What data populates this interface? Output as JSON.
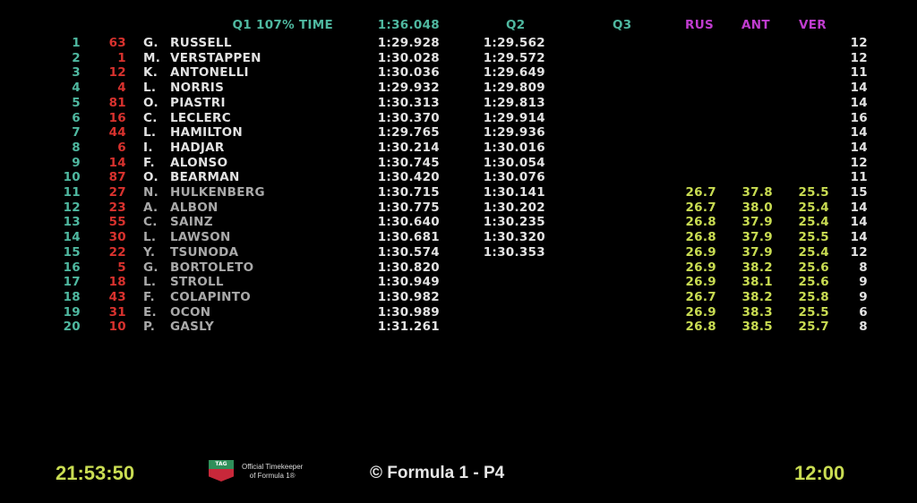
{
  "header": {
    "q1_label": "Q1 107% TIME",
    "q1_107_time": "1:36.048",
    "q2_label": "Q2",
    "q3_label": "Q3",
    "sectors": [
      "RUS",
      "ANT",
      "VER"
    ]
  },
  "rows": [
    {
      "pos": "1",
      "num": "63",
      "initial": "G.",
      "name": "RUSSELL",
      "q1": "1:29.928",
      "q2": "1:29.562",
      "s1": "",
      "s2": "",
      "s3": "",
      "laps": "12"
    },
    {
      "pos": "2",
      "num": "1",
      "initial": "M.",
      "name": "VERSTAPPEN",
      "q1": "1:30.028",
      "q2": "1:29.572",
      "s1": "",
      "s2": "",
      "s3": "",
      "laps": "12"
    },
    {
      "pos": "3",
      "num": "12",
      "initial": "K.",
      "name": "ANTONELLI",
      "q1": "1:30.036",
      "q2": "1:29.649",
      "s1": "",
      "s2": "",
      "s3": "",
      "laps": "11"
    },
    {
      "pos": "4",
      "num": "4",
      "initial": "L.",
      "name": "NORRIS",
      "q1": "1:29.932",
      "q2": "1:29.809",
      "s1": "",
      "s2": "",
      "s3": "",
      "laps": "14"
    },
    {
      "pos": "5",
      "num": "81",
      "initial": "O.",
      "name": "PIASTRI",
      "q1": "1:30.313",
      "q2": "1:29.813",
      "s1": "",
      "s2": "",
      "s3": "",
      "laps": "14"
    },
    {
      "pos": "6",
      "num": "16",
      "initial": "C.",
      "name": "LECLERC",
      "q1": "1:30.370",
      "q2": "1:29.914",
      "s1": "",
      "s2": "",
      "s3": "",
      "laps": "16"
    },
    {
      "pos": "7",
      "num": "44",
      "initial": "L.",
      "name": "HAMILTON",
      "q1": "1:29.765",
      "q2": "1:29.936",
      "s1": "",
      "s2": "",
      "s3": "",
      "laps": "14"
    },
    {
      "pos": "8",
      "num": "6",
      "initial": "I.",
      "name": "HADJAR",
      "q1": "1:30.214",
      "q2": "1:30.016",
      "s1": "",
      "s2": "",
      "s3": "",
      "laps": "14"
    },
    {
      "pos": "9",
      "num": "14",
      "initial": "F.",
      "name": "ALONSO",
      "q1": "1:30.745",
      "q2": "1:30.054",
      "s1": "",
      "s2": "",
      "s3": "",
      "laps": "12"
    },
    {
      "pos": "10",
      "num": "87",
      "initial": "O.",
      "name": "BEARMAN",
      "q1": "1:30.420",
      "q2": "1:30.076",
      "s1": "",
      "s2": "",
      "s3": "",
      "laps": "11"
    },
    {
      "pos": "11",
      "num": "27",
      "initial": "N.",
      "name": "HULKENBERG",
      "q1": "1:30.715",
      "q2": "1:30.141",
      "s1": "26.7",
      "s2": "37.8",
      "s3": "25.5",
      "laps": "15"
    },
    {
      "pos": "12",
      "num": "23",
      "initial": "A.",
      "name": "ALBON",
      "q1": "1:30.775",
      "q2": "1:30.202",
      "s1": "26.7",
      "s2": "38.0",
      "s3": "25.4",
      "laps": "14"
    },
    {
      "pos": "13",
      "num": "55",
      "initial": "C.",
      "name": "SAINZ",
      "q1": "1:30.640",
      "q2": "1:30.235",
      "s1": "26.8",
      "s2": "37.9",
      "s3": "25.4",
      "laps": "14"
    },
    {
      "pos": "14",
      "num": "30",
      "initial": "L.",
      "name": "LAWSON",
      "q1": "1:30.681",
      "q2": "1:30.320",
      "s1": "26.8",
      "s2": "37.9",
      "s3": "25.5",
      "laps": "14"
    },
    {
      "pos": "15",
      "num": "22",
      "initial": "Y.",
      "name": "TSUNODA",
      "q1": "1:30.574",
      "q2": "1:30.353",
      "s1": "26.9",
      "s2": "37.9",
      "s3": "25.4",
      "laps": "12"
    },
    {
      "pos": "16",
      "num": "5",
      "initial": "G.",
      "name": "BORTOLETO",
      "q1": "1:30.820",
      "q2": "",
      "s1": "26.9",
      "s2": "38.2",
      "s3": "25.6",
      "laps": "8"
    },
    {
      "pos": "17",
      "num": "18",
      "initial": "L.",
      "name": "STROLL",
      "q1": "1:30.949",
      "q2": "",
      "s1": "26.9",
      "s2": "38.1",
      "s3": "25.6",
      "laps": "9"
    },
    {
      "pos": "18",
      "num": "43",
      "initial": "F.",
      "name": "COLAPINTO",
      "q1": "1:30.982",
      "q2": "",
      "s1": "26.7",
      "s2": "38.2",
      "s3": "25.8",
      "laps": "9"
    },
    {
      "pos": "19",
      "num": "31",
      "initial": "E.",
      "name": "OCON",
      "q1": "1:30.989",
      "q2": "",
      "s1": "26.9",
      "s2": "38.3",
      "s3": "25.5",
      "laps": "6"
    },
    {
      "pos": "20",
      "num": "10",
      "initial": "P.",
      "name": "GASLY",
      "q1": "1:31.261",
      "q2": "",
      "s1": "26.8",
      "s2": "38.5",
      "s3": "25.7",
      "laps": "8"
    }
  ],
  "footer": {
    "clock": "21:53:50",
    "logo_text": "TAG HEUER",
    "timekeeper_line1": "Official Timekeeper",
    "timekeeper_line2": "of Formula 1®",
    "copyright": "© Formula 1 - P4",
    "remaining": "12:00"
  },
  "colors": {
    "position": "#4fb8a0",
    "car_number": "#d8322e",
    "sector": "#c9dc52",
    "sector_header": "#c03ccf",
    "clock": "#c9dc52"
  }
}
